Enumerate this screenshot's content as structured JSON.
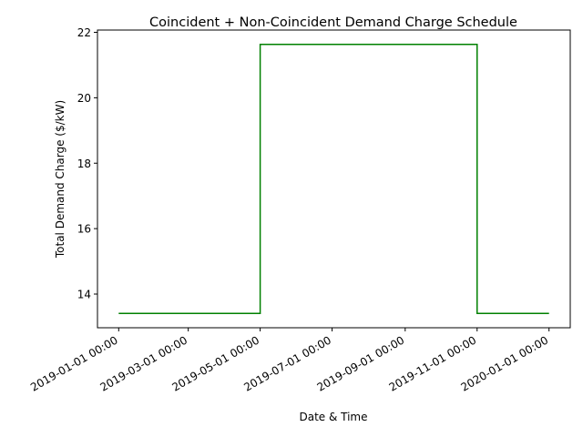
{
  "chart_data": {
    "type": "line",
    "title": "Coincident + Non-Coincident Demand Charge Schedule",
    "xlabel": "Date & Time",
    "ylabel": "Total Demand Charge ($/kW)",
    "x_ticks": [
      "2019-01-01 00:00",
      "2019-03-01 00:00",
      "2019-05-01 00:00",
      "2019-07-01 00:00",
      "2019-09-01 00:00",
      "2019-11-01 00:00",
      "2020-01-01 00:00"
    ],
    "y_ticks": [
      14,
      16,
      18,
      20,
      22
    ],
    "xlim": [
      "2018-12-14",
      "2020-01-19"
    ],
    "ylim": [
      12.97,
      22.07
    ],
    "grid": false,
    "color": "#008000",
    "series": [
      {
        "x": [
          "2019-01-01 00:00",
          "2019-05-01 00:00",
          "2019-05-01 00:00",
          "2019-11-01 00:00",
          "2019-11-01 00:00",
          "2020-01-01 00:00"
        ],
        "y": [
          13.41,
          13.41,
          21.63,
          21.63,
          13.41,
          13.41
        ]
      }
    ]
  }
}
